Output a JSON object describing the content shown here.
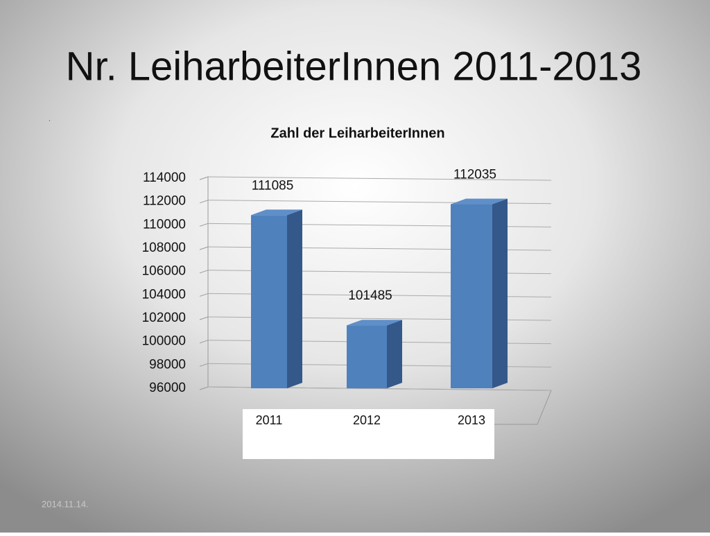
{
  "slide_title": "Nr. LeiharbeiterInnen 2011-2013",
  "note": ".",
  "footer": "2014.11.14.",
  "chart_data": {
    "type": "bar3d",
    "title": "Zahl der LeiharbeiterInnen",
    "categories": [
      "2011",
      "2012",
      "2013"
    ],
    "values": [
      111085,
      101485,
      112035
    ],
    "color": "#4f81bd",
    "side_color": "#34588a",
    "ylim": [
      96000,
      114000
    ],
    "yticks": [
      96000,
      98000,
      100000,
      102000,
      104000,
      106000,
      108000,
      110000,
      112000,
      114000
    ],
    "grid": true
  }
}
